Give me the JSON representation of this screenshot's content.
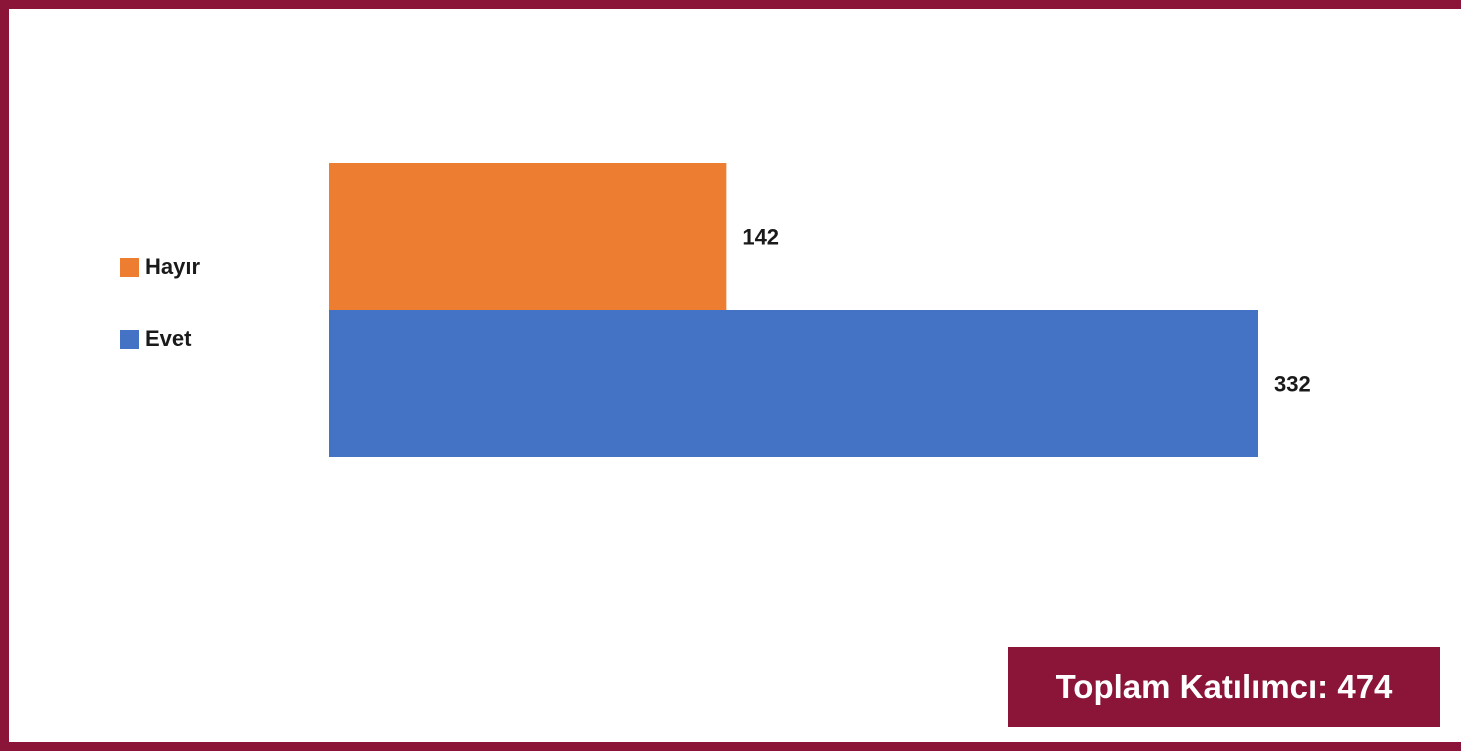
{
  "chart_data": {
    "type": "bar",
    "orientation": "horizontal",
    "series": [
      {
        "name": "Hayır",
        "values": [
          142
        ],
        "color": "#ED7D31"
      },
      {
        "name": "Evet",
        "values": [
          332
        ],
        "color": "#4472C4"
      }
    ],
    "data_labels": [
      "142",
      "332"
    ],
    "legend_position": "left",
    "xlim": [
      0,
      332
    ],
    "grid": false
  },
  "total": {
    "text": "Toplam Katılımcı: 474"
  },
  "frame_color": "#8B1538"
}
